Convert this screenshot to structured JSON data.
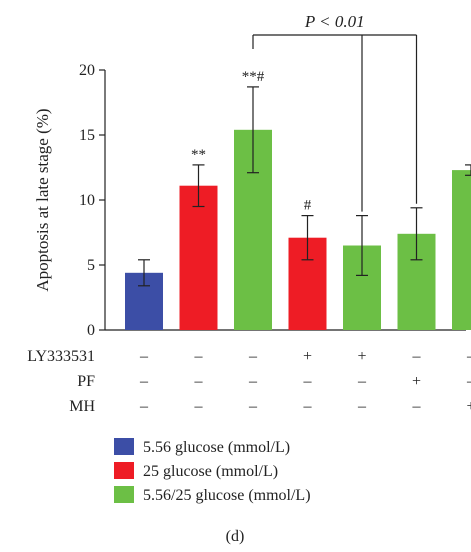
{
  "chart_data": {
    "type": "bar",
    "ylabel": "Apoptosis at late stage (%)",
    "ylim": [
      0,
      20
    ],
    "yticks": [
      0,
      5,
      10,
      15,
      20
    ],
    "bars": [
      {
        "value": 4.4,
        "error": 1.0,
        "group": 0,
        "annotation": ""
      },
      {
        "value": 11.1,
        "error": 1.6,
        "group": 1,
        "annotation": "**"
      },
      {
        "value": 15.4,
        "error": 3.3,
        "group": 2,
        "annotation": "**#"
      },
      {
        "value": 7.1,
        "error": 1.7,
        "group": 1,
        "annotation": "#"
      },
      {
        "value": 6.5,
        "error": 2.3,
        "group": 2,
        "annotation": ""
      },
      {
        "value": 7.4,
        "error": 2.0,
        "group": 2,
        "annotation": ""
      },
      {
        "value": 12.3,
        "error": 0.4,
        "group": 2,
        "annotation": ""
      }
    ],
    "treatment_rows": [
      {
        "label": "LY333531",
        "signs": [
          "–",
          "–",
          "–",
          "+",
          "+",
          "–",
          "–"
        ]
      },
      {
        "label": "PF",
        "signs": [
          "–",
          "–",
          "–",
          "–",
          "–",
          "+",
          "–"
        ]
      },
      {
        "label": "MH",
        "signs": [
          "–",
          "–",
          "–",
          "–",
          "–",
          "–",
          "+"
        ]
      }
    ],
    "significance": {
      "label": "P < 0.01",
      "from_bar": 2,
      "to_bars": [
        4,
        5
      ]
    },
    "legend": [
      {
        "label": "5.56 glucose (mmol/L)",
        "color": "#3c4ea6"
      },
      {
        "label": "25 glucose (mmol/L)",
        "color": "#ee1c25"
      },
      {
        "label": "5.56/25 glucose (mmol/L)",
        "color": "#6cbf45"
      }
    ],
    "legend_placement": "bottom-left",
    "grid": false
  },
  "caption": "(d)"
}
